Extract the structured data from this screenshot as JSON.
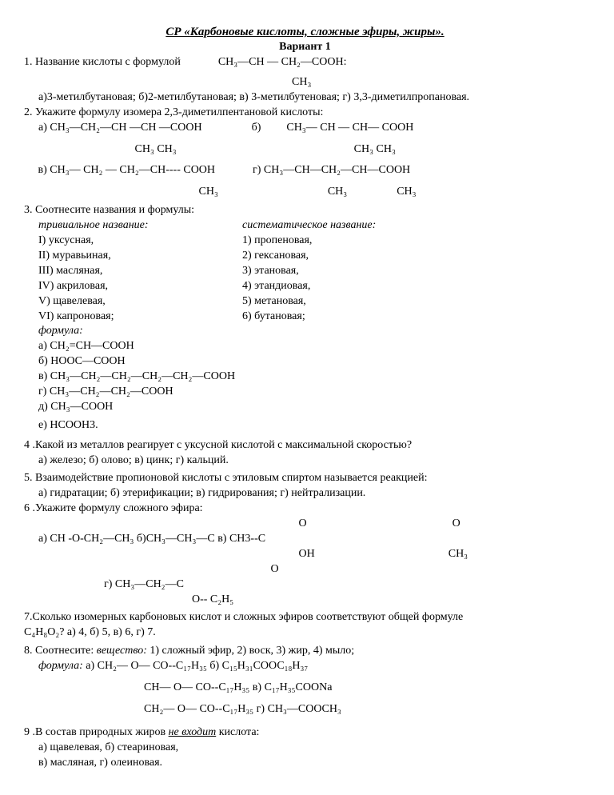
{
  "title": "СР     «Карбоновые кислоты, сложные эфиры, жиры».",
  "variant": "Вариант   1",
  "q1": {
    "prompt_left": "1. Название   кислоты с формулой",
    "formula_main": "CH₃—CH — CH₂—COOH:",
    "formula_sub": "CH₃",
    "opts": "а)3-метилбутановая;   б)2-метилбутановая;   в) 3-метилбутеновая; г) 3,3-диметилпропановая."
  },
  "q2": {
    "prompt": "2.   Укажите формулу изомера 2,3-диметилпентановой кислоты:",
    "a_left": "а)  CH₃—CH₂—CH —CH —COOH",
    "a_mid": "б)",
    "a_right": "CH₃— CH — CH— COOH",
    "a_sub_left": "CH₃    CH₃",
    "a_sub_right": "CH₃    CH₃",
    "c_left": "в)      CH₃— CH₂ — CH₂—CH---- COOH",
    "c_right_label": "г)  CH₃—CH—CH₂—CH—COOH",
    "c_sub_left": "CH₃",
    "c_sub_right_l": "CH₃",
    "c_sub_right_r": "CH₃"
  },
  "q3": {
    "prompt": "3. Соотнесите названия и формулы:",
    "left_head": "тривиальное название:",
    "right_head": "систематическое название:",
    "pairs": [
      [
        "I)        уксусная,",
        "1) пропеновая,"
      ],
      [
        "II)  муравьиная,",
        "2) гексановая,"
      ],
      [
        "III) масляная,",
        "3) этановая,"
      ],
      [
        "IV) акриловая,",
        "4) этандиовая,"
      ],
      [
        "V)   щавелевая,",
        "5) метановая,"
      ],
      [
        "VI) капроновая;",
        "6) бутановая;"
      ]
    ],
    "formula_head": "формула:",
    "formulas": [
      "а)    CH₂=CH—COOH",
      "б)    HOOC—COOH",
      "в)    CH₃—CH₂—CH₂—CH₂—CH₂—COOH",
      "г)    CH₃—CH₂—CH₂—COOH",
      "д)    CH₃—COOH",
      "е)    HCOOH3."
    ]
  },
  "q4": {
    "prompt": "4 .Какой из металлов реагирует с уксусной кислотой с максимальной скоростью?",
    "opts": "а) железо;        б) олово;       в) цинк;   г) кальций."
  },
  "q5": {
    "prompt": "5. Взаимодействие пропионовой кислоты с этиловым спиртом называется реакцией:",
    "opts": "а) гидратации;    б) этерификации;     в) гидрирования;        г) нейтрализации."
  },
  "q6": {
    "prompt": "6 .Укажите формулу сложного эфира:",
    "o_row": {
      "o1_pad": 340,
      "o1": "O",
      "o2_pad": 175,
      "o2": "O"
    },
    "main_row": "а) CH -O-CH₂—CH₃       б)CH₃—CH₃—C                          в) CH3--C",
    "oh_row": {
      "oh_pad": 340,
      "oh": "OH",
      "ch3_pad": 160,
      "ch3": "CH₃"
    },
    "o3_pad": 305,
    "o3": "O",
    "g_left": "г) CH₃—CH₂—C",
    "g_sub": "O-- C₂H₅"
  },
  "q7": {
    "line1": "7.Сколько изомерных карбоновых кислот и сложных эфиров соответствуют общей формуле",
    "line2": "C₄H₈O₂?          а) 4,   б) 5,     в) 6,     г) 7."
  },
  "q8": {
    "line1_a": "8. Соотнесите:   ",
    "line1_b": "вещество:",
    "line1_c": "      1) сложный эфир,          2) воск,             3) жир,      4) мыло;",
    "line2_a": "формула:",
    "line2_b": "          а) СН₂— О— СО--С₁₇Н₃₅                 б) С₁₅Н₃₁СООС₁₈Н₃₇",
    "line3": "CH— O— CO--C₁₇H₃₅               в) C₁₇H₃₅COONa",
    "line4": "CH₂— O— CO--C₁₇H₃₅              г) CH₃—COOCH₃"
  },
  "q9": {
    "prompt_a": "9 .В состав природных жиров ",
    "prompt_u": "не входит",
    "prompt_b": " кислота:",
    "line1": "а) щавелевая,      б) стеариновая,",
    "line2": "в) масляная,        г) олеиновая."
  }
}
